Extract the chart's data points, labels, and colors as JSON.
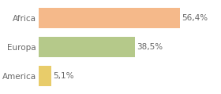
{
  "categories": [
    "Africa",
    "Europa",
    "America"
  ],
  "values": [
    56.4,
    38.5,
    5.1
  ],
  "bar_colors": [
    "#f5b98a",
    "#b5c98a",
    "#e8cc6a"
  ],
  "labels": [
    "56,4%",
    "38,5%",
    "5,1%"
  ],
  "background_color": "#ffffff",
  "xlim": [
    0,
    72
  ],
  "bar_height": 0.72,
  "label_fontsize": 7.5,
  "tick_fontsize": 7.5,
  "grid_color": "#e0e0e0",
  "text_color": "#666666"
}
